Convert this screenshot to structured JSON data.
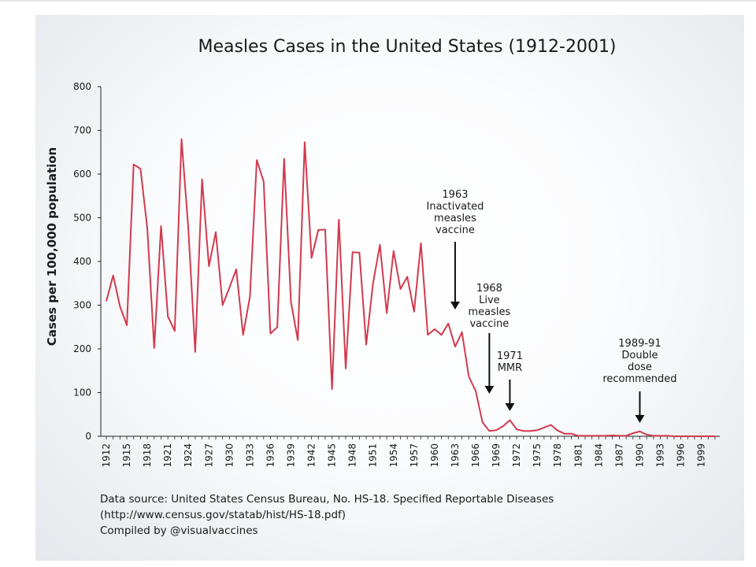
{
  "chart_data": {
    "type": "line",
    "title": "Measles Cases in the United States (1912-2001)",
    "xlabel": "",
    "ylabel": "Cases per 100,000 population",
    "xlim": [
      1912,
      2001
    ],
    "ylim": [
      0,
      800
    ],
    "yticks": [
      0,
      100,
      200,
      300,
      400,
      500,
      600,
      700,
      800
    ],
    "xticks": [
      1912,
      1915,
      1918,
      1921,
      1924,
      1927,
      1930,
      1933,
      1936,
      1939,
      1942,
      1945,
      1948,
      1951,
      1954,
      1957,
      1960,
      1963,
      1966,
      1969,
      1972,
      1975,
      1978,
      1981,
      1984,
      1987,
      1990,
      1993,
      1996,
      1999
    ],
    "grid": false,
    "line_color": "#d23a4e",
    "series": [
      {
        "name": "",
        "x": [
          1912,
          1913,
          1914,
          1915,
          1916,
          1917,
          1918,
          1919,
          1920,
          1921,
          1922,
          1923,
          1924,
          1925,
          1926,
          1927,
          1928,
          1929,
          1930,
          1931,
          1932,
          1933,
          1934,
          1935,
          1936,
          1937,
          1938,
          1939,
          1940,
          1941,
          1942,
          1943,
          1944,
          1945,
          1946,
          1947,
          1948,
          1949,
          1950,
          1951,
          1952,
          1953,
          1954,
          1955,
          1956,
          1957,
          1958,
          1959,
          1960,
          1961,
          1962,
          1963,
          1964,
          1965,
          1966,
          1967,
          1968,
          1969,
          1970,
          1971,
          1972,
          1973,
          1974,
          1975,
          1976,
          1977,
          1978,
          1979,
          1980,
          1981,
          1982,
          1983,
          1984,
          1985,
          1986,
          1987,
          1988,
          1989,
          1990,
          1991,
          1992,
          1993,
          1994,
          1995,
          1996,
          1997,
          1998,
          1999,
          2000,
          2001
        ],
        "y": [
          309,
          368,
          297,
          254,
          622,
          612,
          475,
          202,
          481,
          274,
          241,
          680,
          474,
          193,
          588,
          389,
          467,
          300,
          340,
          382,
          232,
          320,
          632,
          583,
          235,
          250,
          635,
          307,
          220,
          673,
          408,
          472,
          473,
          108,
          496,
          155,
          421,
          420,
          210,
          350,
          438,
          282,
          424,
          337,
          365,
          285,
          442,
          232,
          245,
          232,
          258,
          205,
          238,
          137,
          104,
          32,
          12,
          14,
          23,
          37,
          16,
          12,
          12,
          14,
          20,
          26,
          13,
          6,
          6,
          1,
          1,
          1,
          1,
          1,
          2,
          1,
          1,
          7,
          11,
          4,
          1,
          1,
          1,
          0,
          0,
          0,
          0,
          0,
          0,
          0
        ]
      }
    ],
    "annotations": [
      {
        "year": 1963,
        "lines": [
          "1963",
          "Inactivated",
          "measles",
          "vaccine"
        ]
      },
      {
        "year": 1968,
        "lines": [
          "1968",
          "Live",
          "measles",
          "vaccine"
        ]
      },
      {
        "year": 1971,
        "lines": [
          "1971",
          "MMR"
        ]
      },
      {
        "year": 1990,
        "lines": [
          "1989-91",
          "Double",
          "dose",
          "recommended"
        ]
      }
    ]
  },
  "footer": {
    "line1": "Data source: United States Census Bureau, No. HS-18. Specified Reportable Diseases",
    "line2": "(http://www.census.gov/statab/hist/HS-18.pdf)",
    "line3": "Compiled by @visualvaccines"
  }
}
